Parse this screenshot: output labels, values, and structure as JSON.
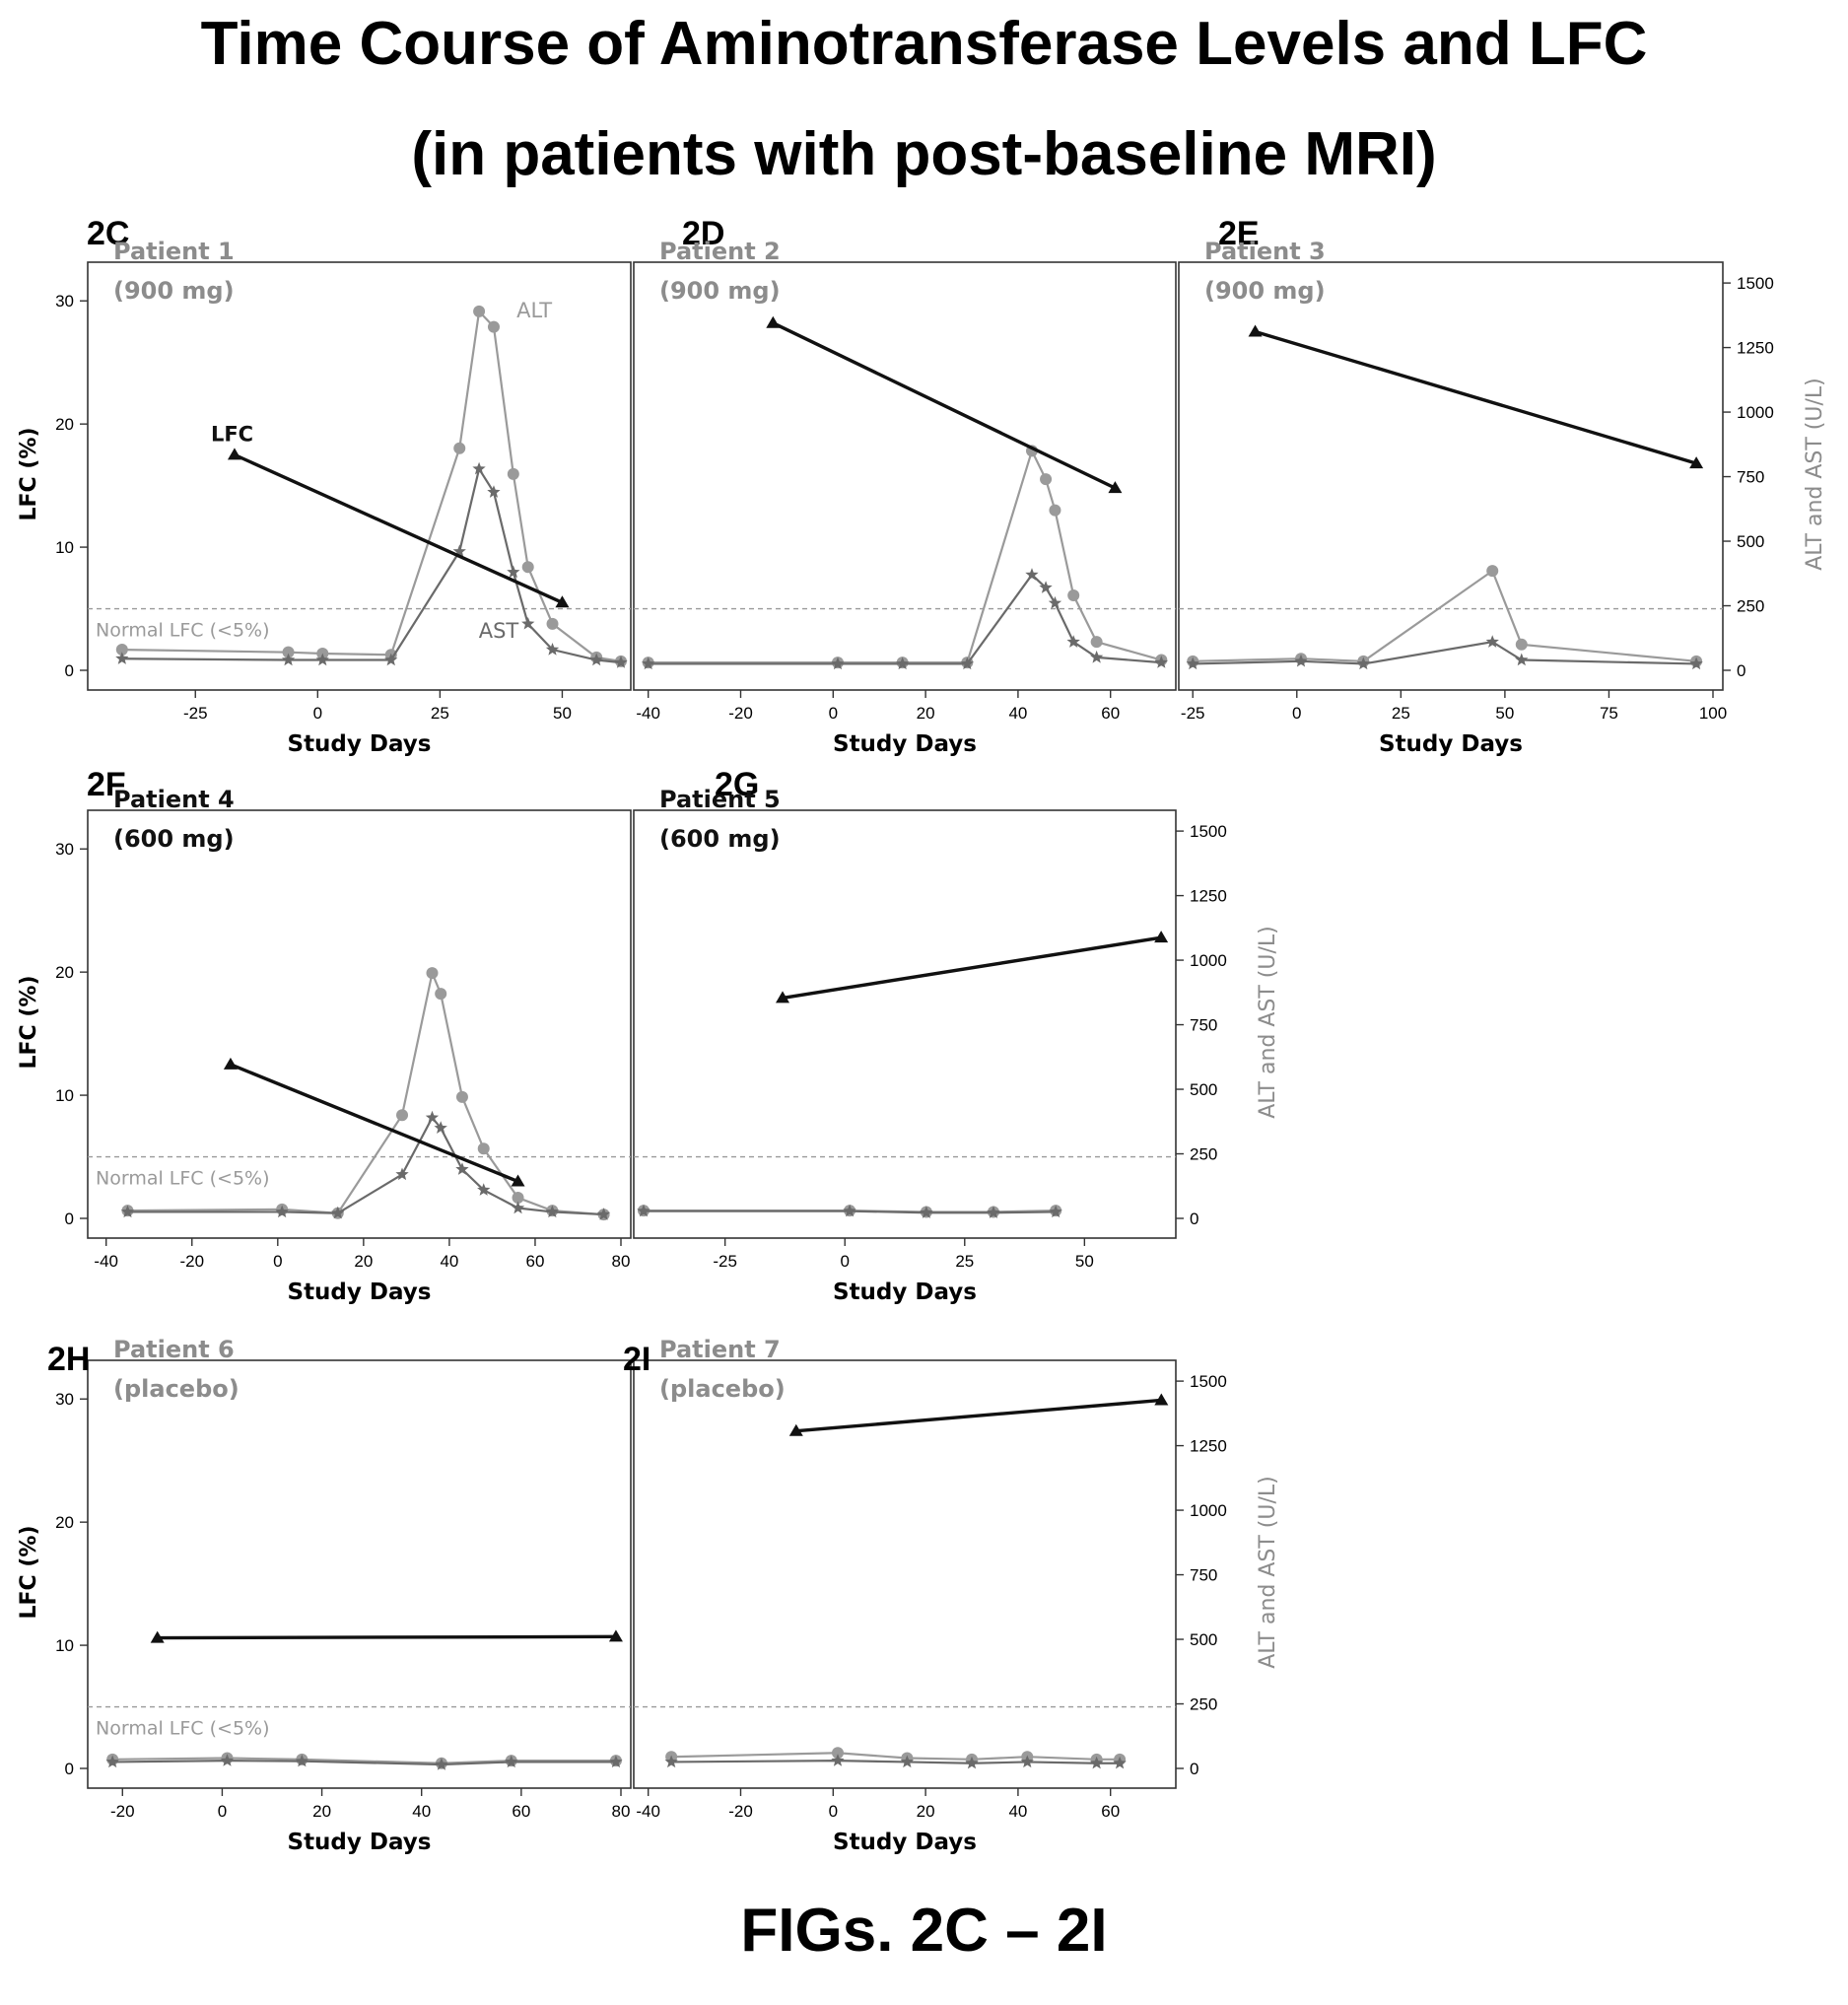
{
  "titles": {
    "line1": "Time Course of Aminotransferase Levels and LFC",
    "line2": "(in patients with post-baseline MRI)",
    "caption": "FIGs. 2C – 2I"
  },
  "colors": {
    "lfc": "#111111",
    "alt": "#9a9a9a",
    "ast": "#6a6a6a",
    "normal_line": "#9a9a9a",
    "axis": "#333333"
  },
  "common": {
    "xlabel": "Study Days",
    "ylabel_left": "LFC (%)",
    "ylabel_right": "ALT and AST (U/L)",
    "normal_label": "Normal LFC (<5%)",
    "normal_lfc_threshold": 5,
    "left_ylim": [
      0,
      32.5
    ],
    "left_yticks": [
      0,
      10,
      20,
      30
    ],
    "right_ylim": [
      0,
      1550
    ],
    "right_yticks": [
      0,
      250,
      500,
      750,
      1000,
      1250,
      1500
    ]
  },
  "chart_data": [
    {
      "type": "line",
      "figure": "2C",
      "patient": "Patient 1",
      "dose": "(900 mg)",
      "xlim": [
        -45,
        62
      ],
      "xticks": [
        -25,
        0,
        25,
        50
      ],
      "series_labels": {
        "lfc": "LFC",
        "alt": "ALT",
        "ast": "AST"
      },
      "lfc": {
        "x": [
          -17,
          50
        ],
        "y": [
          17.5,
          5.5
        ]
      },
      "alt": {
        "x": [
          -40,
          -6,
          1,
          15,
          29,
          33,
          36,
          40,
          43,
          48,
          57,
          62
        ],
        "y": [
          80,
          70,
          65,
          60,
          860,
          1390,
          1330,
          760,
          400,
          180,
          50,
          35
        ]
      },
      "ast": {
        "x": [
          -40,
          -6,
          1,
          15,
          29,
          33,
          36,
          40,
          43,
          48,
          57,
          62
        ],
        "y": [
          45,
          40,
          40,
          40,
          460,
          780,
          690,
          380,
          180,
          80,
          40,
          30
        ]
      }
    },
    {
      "type": "line",
      "figure": "2D",
      "patient": "Patient 2",
      "dose": "(900 mg)",
      "xlim": [
        -41,
        72
      ],
      "xticks": [
        -40,
        -20,
        0,
        20,
        40,
        60
      ],
      "lfc": {
        "x": [
          -13,
          61
        ],
        "y": [
          28.2,
          14.8
        ]
      },
      "alt": {
        "x": [
          -40,
          1,
          15,
          29,
          43,
          46,
          48,
          52,
          57,
          71
        ],
        "y": [
          30,
          30,
          30,
          30,
          850,
          740,
          620,
          290,
          110,
          40
        ]
      },
      "ast": {
        "x": [
          -40,
          1,
          15,
          29,
          43,
          46,
          48,
          52,
          57,
          71
        ],
        "y": [
          25,
          25,
          25,
          25,
          370,
          320,
          260,
          110,
          50,
          30
        ]
      }
    },
    {
      "type": "line",
      "figure": "2E",
      "patient": "Patient 3",
      "dose": "(900 mg)",
      "xlim": [
        -26,
        100
      ],
      "xticks": [
        -25,
        0,
        25,
        50,
        75,
        100
      ],
      "lfc": {
        "x": [
          -10,
          96
        ],
        "y": [
          27.5,
          16.8
        ]
      },
      "alt": {
        "x": [
          -25,
          1,
          16,
          47,
          54,
          96
        ],
        "y": [
          35,
          45,
          35,
          385,
          100,
          35
        ]
      },
      "ast": {
        "x": [
          -25,
          1,
          16,
          47,
          54,
          96
        ],
        "y": [
          25,
          35,
          25,
          110,
          40,
          25
        ]
      }
    },
    {
      "type": "line",
      "figure": "2F",
      "patient": "Patient 4",
      "dose": "(600 mg)",
      "xlim": [
        -42,
        80
      ],
      "xticks": [
        -40,
        -20,
        0,
        20,
        40,
        60,
        80
      ],
      "lfc": {
        "x": [
          -11,
          56
        ],
        "y": [
          12.5,
          3.0
        ]
      },
      "alt": {
        "x": [
          -35,
          1,
          14,
          29,
          36,
          38,
          43,
          48,
          56,
          64,
          76
        ],
        "y": [
          30,
          35,
          20,
          400,
          950,
          870,
          470,
          270,
          80,
          30,
          15
        ]
      },
      "ast": {
        "x": [
          -35,
          1,
          14,
          29,
          36,
          38,
          43,
          48,
          56,
          64,
          76
        ],
        "y": [
          25,
          25,
          20,
          170,
          390,
          350,
          190,
          110,
          40,
          25,
          15
        ]
      }
    },
    {
      "type": "line",
      "figure": "2G",
      "patient": "Patient 5",
      "dose": "(600 mg)",
      "xlim": [
        -42,
        67
      ],
      "xticks": [
        -25,
        0,
        25,
        50
      ],
      "lfc": {
        "x": [
          -13,
          66
        ],
        "y": [
          17.9,
          22.8
        ]
      },
      "alt": {
        "x": [
          -42,
          1,
          17,
          31,
          44
        ],
        "y": [
          30,
          30,
          25,
          25,
          30
        ]
      },
      "ast": {
        "x": [
          -42,
          1,
          17,
          31,
          44
        ],
        "y": [
          28,
          28,
          22,
          22,
          25
        ]
      }
    },
    {
      "type": "line",
      "figure": "2H",
      "patient": "Patient 6",
      "dose": "(placebo)",
      "xlim": [
        -25,
        80
      ],
      "xticks": [
        -20,
        0,
        20,
        40,
        60,
        80
      ],
      "lfc": {
        "x": [
          -13,
          79
        ],
        "y": [
          10.6,
          10.7
        ]
      },
      "alt": {
        "x": [
          -22,
          1,
          16,
          44,
          58,
          79
        ],
        "y": [
          35,
          40,
          35,
          20,
          30,
          30
        ]
      },
      "ast": {
        "x": [
          -22,
          1,
          16,
          44,
          58,
          79
        ],
        "y": [
          25,
          30,
          28,
          15,
          25,
          25
        ]
      }
    },
    {
      "type": "line",
      "figure": "2I",
      "patient": "Patient 7",
      "dose": "(placebo)",
      "xlim": [
        -41,
        72
      ],
      "xticks": [
        -40,
        -20,
        0,
        20,
        40,
        60
      ],
      "lfc": {
        "x": [
          -8,
          71
        ],
        "y": [
          27.4,
          29.9
        ]
      },
      "alt": {
        "x": [
          -35,
          1,
          16,
          30,
          42,
          57,
          62
        ],
        "y": [
          45,
          60,
          40,
          35,
          45,
          35,
          35
        ]
      },
      "ast": {
        "x": [
          -35,
          1,
          16,
          30,
          42,
          57,
          62
        ],
        "y": [
          25,
          30,
          25,
          20,
          25,
          20,
          20
        ]
      }
    }
  ]
}
